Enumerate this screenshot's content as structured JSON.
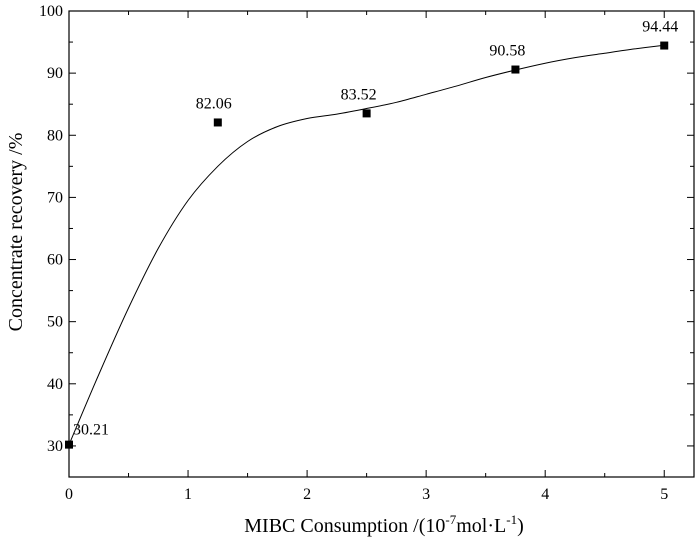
{
  "chart_data": {
    "type": "scatter",
    "title": "",
    "xlabel": "MIBC Consumption  /(10",
    "xlabel_sup1": "-7",
    "xlabel_mid": "mol·L",
    "xlabel_sup2": "-1",
    "xlabel_end": ")",
    "ylabel": "Concentrate recovery /%",
    "xlim": [
      0,
      5.25
    ],
    "ylim": [
      25,
      100
    ],
    "xticks": [
      0,
      1,
      2,
      3,
      4,
      5
    ],
    "yticks": [
      30,
      40,
      50,
      60,
      70,
      80,
      90,
      100
    ],
    "grid": false,
    "series": [
      {
        "x": [
          0,
          1.25,
          2.5,
          3.75,
          5
        ],
        "y": [
          30.21,
          82.06,
          83.52,
          90.58,
          94.44
        ],
        "labels": [
          "30.21",
          "82.06",
          "83.52",
          "90.58",
          "94.44"
        ],
        "marker": "square",
        "color": "#000000"
      }
    ],
    "fit_curve": {
      "x": [
        0,
        0.25,
        0.5,
        0.75,
        1.0,
        1.25,
        1.5,
        1.75,
        2.0,
        2.25,
        2.5,
        2.75,
        3.0,
        3.25,
        3.5,
        3.75,
        4.0,
        4.25,
        4.5,
        4.75,
        5.0
      ],
      "y": [
        30.2,
        41.5,
        52.2,
        61.8,
        69.5,
        75.0,
        79.0,
        81.4,
        82.7,
        83.4,
        84.3,
        85.3,
        86.6,
        87.9,
        89.3,
        90.5,
        91.6,
        92.5,
        93.2,
        93.9,
        94.5
      ]
    }
  }
}
